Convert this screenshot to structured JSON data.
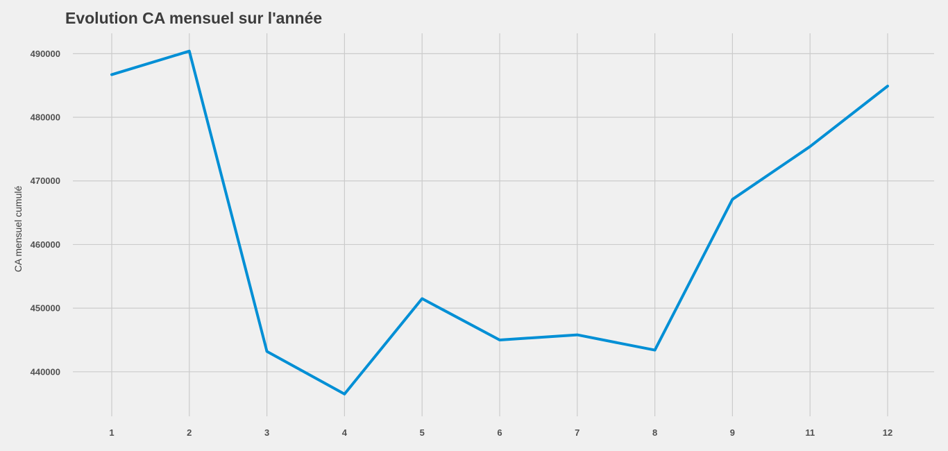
{
  "chart_data": {
    "type": "line",
    "title": "Evolution CA mensuel sur l'année",
    "xlabel": "",
    "ylabel": "CA mensuel cumulé",
    "categories": [
      "1",
      "2",
      "3",
      "4",
      "5",
      "6",
      "7",
      "8",
      "9",
      "11",
      "12"
    ],
    "series": [
      {
        "values": [
          486700,
          490400,
          443200,
          436500,
          451500,
          445000,
          445800,
          443400,
          467100,
          475400,
          484900
        ]
      }
    ],
    "y_ticks": [
      440000,
      450000,
      460000,
      470000,
      480000,
      490000
    ],
    "ylim": [
      433000,
      493200
    ],
    "grid": true,
    "legend": "none",
    "colors": {
      "background": "#f0f0f0",
      "grid": "#cbcbcb",
      "series": "#008fd5",
      "text": "#3c3c3c"
    }
  }
}
